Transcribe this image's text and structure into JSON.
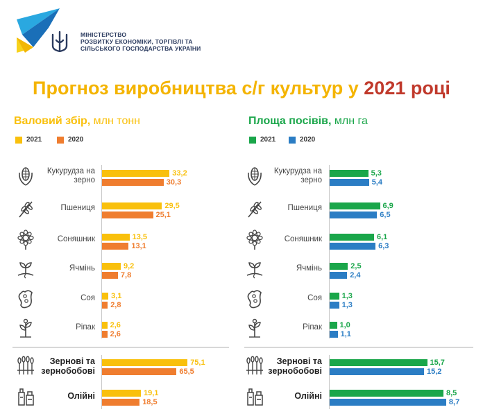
{
  "header": {
    "ministry_lines": [
      "МІНІСТЕРСТВО",
      "РОЗВИТКУ ЕКОНОМІКИ, ТОРГІВЛІ ТА",
      "СІЛЬСЬКОГО ГОСПОДАРСТВА УКРАЇНИ"
    ]
  },
  "title": {
    "part1": "Прогноз виробництва с/г культур у ",
    "part2": "2021 році",
    "color1": "#f4b400",
    "color2": "#c0392b"
  },
  "colors": {
    "yellow": "#f9c00c",
    "orange": "#ef7d2f",
    "green": "#1aa64a",
    "blue": "#2b7dc4",
    "icon": "#444444"
  },
  "sections": {
    "left_title": "Валовий збір,",
    "left_unit": " млн тонн",
    "right_title": "Площа посівів,",
    "right_unit": " млн га"
  },
  "chart_data": [
    {
      "type": "bar",
      "title": "Валовий збір, млн тонн",
      "categories": [
        "Кукурудза на зерно",
        "Пшениця",
        "Соняшник",
        "Ячмінь",
        "Соя",
        "Ріпак",
        "Зернові та зернобобові",
        "Олійні"
      ],
      "series": [
        {
          "name": "2021",
          "color": "#f9c00c",
          "values": [
            33.2,
            29.5,
            13.5,
            9.2,
            3.1,
            2.6,
            75.1,
            19.1
          ],
          "labels": [
            "33,2",
            "29,5",
            "13,5",
            "9,2",
            "3,1",
            "2,6",
            "75,1",
            "19,1"
          ]
        },
        {
          "name": "2020",
          "color": "#ef7d2f",
          "values": [
            30.3,
            25.1,
            13.1,
            7.8,
            2.8,
            2.6,
            65.5,
            18.5
          ],
          "labels": [
            "30,3",
            "25,1",
            "13,1",
            "7,8",
            "2,8",
            "2,6",
            "65,5",
            "18,5"
          ]
        }
      ]
    },
    {
      "type": "bar",
      "title": "Площа посівів, млн га",
      "categories": [
        "Кукурудза на зерно",
        "Пшениця",
        "Соняшник",
        "Ячмінь",
        "Соя",
        "Ріпак",
        "Зернові та зернобобові",
        "Олійні"
      ],
      "series": [
        {
          "name": "2021",
          "color": "#1aa64a",
          "values": [
            5.3,
            6.9,
            6.1,
            2.5,
            1.3,
            1.0,
            15.7,
            8.5
          ],
          "labels": [
            "5,3",
            "6,9",
            "6,1",
            "2,5",
            "1,3",
            "1,0",
            "15,7",
            "8,5"
          ]
        },
        {
          "name": "2020",
          "color": "#2b7dc4",
          "values": [
            5.4,
            6.5,
            6.3,
            2.4,
            1.3,
            1.1,
            15.2,
            8.7
          ],
          "labels": [
            "5,4",
            "6,5",
            "6,3",
            "2,4",
            "1,3",
            "1,1",
            "15,2",
            "8,7"
          ]
        }
      ]
    }
  ],
  "crop_labels": [
    [
      "Кукурудза на",
      "зерно"
    ],
    [
      "Пшениця"
    ],
    [
      "Соняшник"
    ],
    [
      "Ячмінь"
    ],
    [
      "Соя"
    ],
    [
      "Ріпак"
    ],
    [
      "Зернові та",
      "зернобобові"
    ],
    [
      "Олійні"
    ]
  ],
  "icons": [
    "corn-icon",
    "wheat-icon",
    "sunflower-icon",
    "barley-sprout-icon",
    "soy-icon",
    "rapeseed-icon",
    "grain-sheaves-icon",
    "oil-bottles-icon"
  ]
}
